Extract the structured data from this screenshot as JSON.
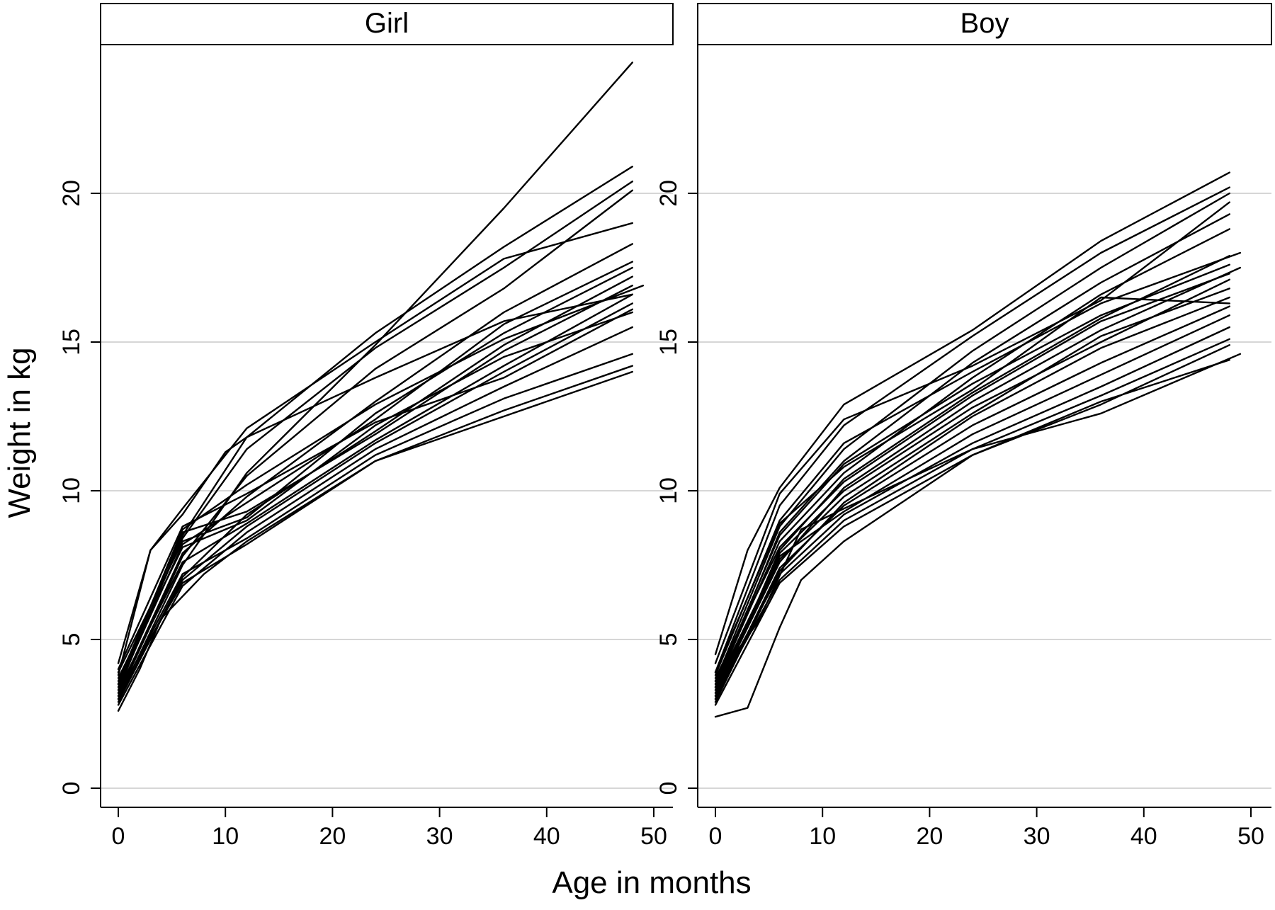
{
  "chart_data": {
    "type": "line",
    "ylabel": "Weight in kg",
    "xlabel": "Age in months",
    "xlim": [
      -2,
      52
    ],
    "ylim": [
      -0.6,
      25.5
    ],
    "x_ticks": [
      0,
      10,
      20,
      30,
      40,
      50
    ],
    "y_ticks": [
      0,
      5,
      10,
      15,
      20
    ],
    "grid": "horizontal",
    "line_color": "#000000",
    "panels": [
      {
        "title": "Girl",
        "series": [
          {
            "x": [
              0,
              6,
              12,
              24,
              36,
              48
            ],
            "y": [
              3.0,
              7.5,
              10.6,
              14.9,
              19.5,
              24.4
            ]
          },
          {
            "x": [
              0,
              6,
              12,
              24,
              36,
              48
            ],
            "y": [
              3.3,
              8.5,
              11.8,
              15.3,
              18.2,
              20.9
            ]
          },
          {
            "x": [
              0,
              6,
              12,
              24,
              36,
              48
            ],
            "y": [
              3.5,
              8.4,
              11.4,
              14.8,
              17.5,
              20.4
            ]
          },
          {
            "x": [
              0,
              6,
              12,
              24,
              36,
              48
            ],
            "y": [
              3.1,
              7.8,
              10.5,
              14.1,
              16.8,
              20.1
            ]
          },
          {
            "x": [
              0,
              3,
              6,
              12,
              24,
              36,
              48
            ],
            "y": [
              3.8,
              8.0,
              9.4,
              12.1,
              15.0,
              17.8,
              19.0
            ]
          },
          {
            "x": [
              0,
              6,
              12,
              24,
              36,
              48
            ],
            "y": [
              3.2,
              7.9,
              9.8,
              13.0,
              16.0,
              18.3
            ]
          },
          {
            "x": [
              0,
              6,
              12,
              24,
              36,
              48
            ],
            "y": [
              3.4,
              8.2,
              9.6,
              12.4,
              15.6,
              17.7
            ]
          },
          {
            "x": [
              0,
              6,
              12,
              24,
              36,
              48
            ],
            "y": [
              2.9,
              7.1,
              9.2,
              12.0,
              14.9,
              17.2
            ]
          },
          {
            "x": [
              0,
              6,
              12,
              24,
              36,
              48
            ],
            "y": [
              3.6,
              8.6,
              9.3,
              11.9,
              14.7,
              16.9
            ]
          },
          {
            "x": [
              0,
              6,
              12,
              24,
              36,
              48
            ],
            "y": [
              3.3,
              7.6,
              8.9,
              11.7,
              14.2,
              16.6
            ]
          },
          {
            "x": [
              0,
              6,
              12,
              24,
              36,
              48
            ],
            "y": [
              3.0,
              7.0,
              8.8,
              11.6,
              14.0,
              16.3
            ]
          },
          {
            "x": [
              0,
              6,
              12,
              24,
              36,
              48
            ],
            "y": [
              3.7,
              8.1,
              9.0,
              12.2,
              14.5,
              16.0
            ]
          },
          {
            "x": [
              0,
              6,
              12,
              24,
              36,
              48
            ],
            "y": [
              2.8,
              6.8,
              8.6,
              11.4,
              13.5,
              15.5
            ]
          },
          {
            "x": [
              0,
              6,
              12,
              24,
              36,
              48
            ],
            "y": [
              3.1,
              7.2,
              8.4,
              11.2,
              13.1,
              14.6
            ]
          },
          {
            "x": [
              0,
              6,
              12,
              24,
              36,
              48
            ],
            "y": [
              3.2,
              6.9,
              8.2,
              11.0,
              12.7,
              14.2
            ]
          },
          {
            "x": [
              0,
              2,
              4,
              8,
              12,
              24,
              36,
              48
            ],
            "y": [
              2.6,
              4.0,
              5.7,
              7.2,
              8.3,
              11.0,
              12.5,
              14.0
            ]
          },
          {
            "x": [
              0,
              3,
              6,
              10,
              12,
              24,
              36,
              48
            ],
            "y": [
              4.2,
              8.0,
              9.2,
              11.3,
              11.8,
              13.8,
              15.7,
              16.6
            ]
          },
          {
            "x": [
              0,
              6,
              12,
              24,
              36,
              49
            ],
            "y": [
              3.5,
              8.7,
              10.2,
              12.9,
              15.1,
              16.9
            ]
          },
          {
            "x": [
              0,
              6,
              12,
              24,
              36,
              48
            ],
            "y": [
              3.9,
              8.3,
              9.1,
              12.6,
              15.3,
              17.5
            ]
          },
          {
            "x": [
              0,
              6,
              12,
              24,
              36,
              48
            ],
            "y": [
              4.0,
              8.8,
              9.9,
              12.3,
              13.8,
              16.1
            ]
          }
        ]
      },
      {
        "title": "Boy",
        "series": [
          {
            "x": [
              0,
              3,
              6,
              12,
              24,
              36,
              48
            ],
            "y": [
              4.5,
              8.0,
              10.1,
              12.9,
              15.4,
              18.4,
              20.7
            ]
          },
          {
            "x": [
              0,
              6,
              12,
              24,
              36,
              48
            ],
            "y": [
              3.9,
              9.5,
              12.2,
              15.2,
              18.0,
              20.2
            ]
          },
          {
            "x": [
              0,
              6,
              12,
              24,
              36,
              48
            ],
            "y": [
              3.6,
              8.8,
              11.4,
              14.7,
              17.5,
              20.0
            ]
          },
          {
            "x": [
              0,
              6,
              12,
              24,
              36,
              48
            ],
            "y": [
              3.3,
              8.6,
              11.0,
              14.3,
              17.0,
              19.3
            ]
          },
          {
            "x": [
              0,
              6,
              12,
              24,
              36,
              48
            ],
            "y": [
              3.4,
              8.3,
              10.6,
              13.8,
              16.6,
              18.8
            ]
          },
          {
            "x": [
              0,
              6,
              12,
              24,
              36,
              49
            ],
            "y": [
              3.8,
              9.0,
              11.6,
              14.0,
              16.3,
              18.0
            ]
          },
          {
            "x": [
              0,
              6,
              12,
              24,
              36,
              48
            ],
            "y": [
              3.0,
              8.0,
              10.4,
              13.3,
              15.8,
              17.9
            ]
          },
          {
            "x": [
              0,
              6,
              12,
              24,
              36,
              48
            ],
            "y": [
              3.5,
              8.5,
              10.9,
              13.6,
              15.9,
              17.6
            ]
          },
          {
            "x": [
              0,
              6,
              12,
              24,
              36,
              49
            ],
            "y": [
              3.2,
              7.6,
              10.1,
              13.0,
              15.4,
              17.5
            ]
          },
          {
            "x": [
              0,
              6,
              12,
              24,
              36,
              48
            ],
            "y": [
              3.7,
              8.1,
              10.3,
              13.2,
              15.7,
              17.3
            ]
          },
          {
            "x": [
              0,
              6,
              12,
              24,
              36,
              48
            ],
            "y": [
              3.1,
              7.9,
              10.0,
              12.8,
              15.0,
              17.1
            ]
          },
          {
            "x": [
              0,
              6,
              12,
              24,
              36,
              48
            ],
            "y": [
              3.3,
              7.7,
              9.8,
              12.6,
              15.2,
              16.8
            ]
          },
          {
            "x": [
              0,
              6,
              12,
              24,
              36,
              48
            ],
            "y": [
              2.9,
              7.3,
              9.6,
              12.5,
              14.8,
              16.5
            ]
          },
          {
            "x": [
              0,
              6,
              12,
              24,
              36,
              48
            ],
            "y": [
              3.0,
              7.4,
              9.5,
              12.2,
              14.3,
              16.2
            ]
          },
          {
            "x": [
              0,
              6,
              12,
              24,
              36,
              48
            ],
            "y": [
              3.4,
              7.8,
              9.3,
              11.9,
              13.9,
              15.9
            ]
          },
          {
            "x": [
              0,
              6,
              12,
              24,
              36,
              48
            ],
            "y": [
              3.2,
              7.2,
              9.2,
              11.6,
              13.5,
              15.5
            ]
          },
          {
            "x": [
              0,
              6,
              12,
              24,
              36,
              48
            ],
            "y": [
              3.1,
              7.0,
              9.0,
              11.4,
              13.2,
              15.1
            ]
          },
          {
            "x": [
              0,
              6,
              12,
              24,
              36,
              48
            ],
            "y": [
              2.8,
              6.9,
              8.8,
              11.2,
              12.9,
              14.9
            ]
          },
          {
            "x": [
              0,
              4,
              8,
              12,
              24,
              36,
              49
            ],
            "y": [
              3.6,
              5.6,
              8.7,
              9.4,
              11.4,
              12.6,
              14.6
            ]
          },
          {
            "x": [
              0,
              3,
              6,
              8,
              12,
              24,
              36,
              48
            ],
            "y": [
              2.4,
              2.7,
              5.4,
              7.0,
              8.3,
              11.2,
              13.0,
              14.4
            ]
          },
          {
            "x": [
              0,
              6,
              12,
              24,
              36,
              48
            ],
            "y": [
              4.2,
              9.9,
              12.4,
              14.2,
              16.4,
              19.7
            ]
          },
          {
            "x": [
              0,
              6,
              12,
              24,
              36,
              48
            ],
            "y": [
              3.9,
              8.9,
              10.8,
              13.4,
              16.5,
              16.3
            ]
          }
        ]
      }
    ]
  }
}
